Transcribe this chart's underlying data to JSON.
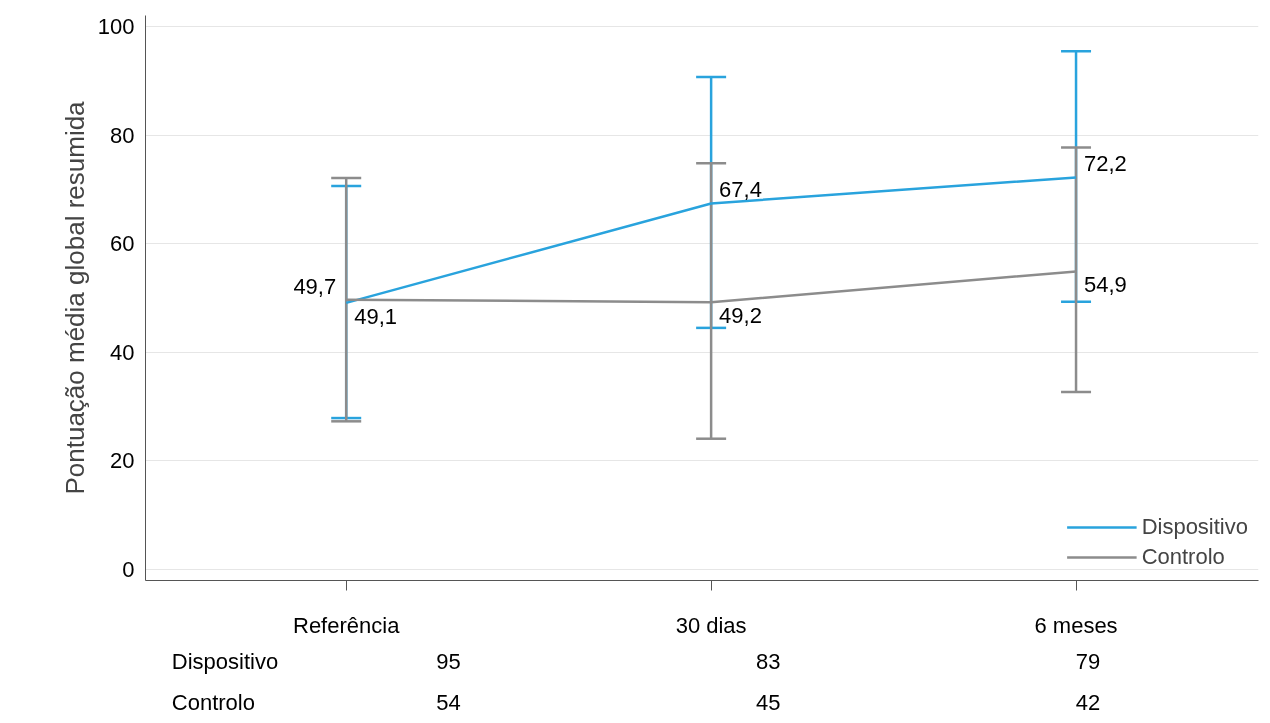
{
  "chart_data": {
    "type": "line",
    "ylabel": "Pontuação média global resumida",
    "categories": [
      "Referência",
      "30 dias",
      "6 meses"
    ],
    "series": [
      {
        "name": "Dispositivo",
        "color": "#29a3dd",
        "values": [
          49.1,
          67.4,
          72.2
        ],
        "value_labels": [
          "49,1",
          "67,4",
          "72,2"
        ],
        "errors": [
          [
            27.9,
            70.6
          ],
          [
            44.5,
            90.7
          ],
          [
            49.3,
            95.4
          ]
        ]
      },
      {
        "name": "Controlo",
        "color": "#8c8c8c",
        "values": [
          49.7,
          49.2,
          54.9
        ],
        "value_labels": [
          "49,7",
          "49,2",
          "54,9"
        ],
        "errors": [
          [
            27.3,
            72.1
          ],
          [
            24.1,
            74.8
          ],
          [
            32.7,
            77.7
          ]
        ]
      }
    ],
    "ylim": [
      -2,
      102
    ],
    "yticks": [
      0,
      20,
      40,
      60,
      80,
      100
    ],
    "grid": "y",
    "legend": "bottom right",
    "marker": "none",
    "line_style": "solid",
    "annotations": [
      "Dispositivo",
      "95",
      "83",
      "79",
      "Controlo",
      "54",
      "45",
      "42"
    ]
  }
}
